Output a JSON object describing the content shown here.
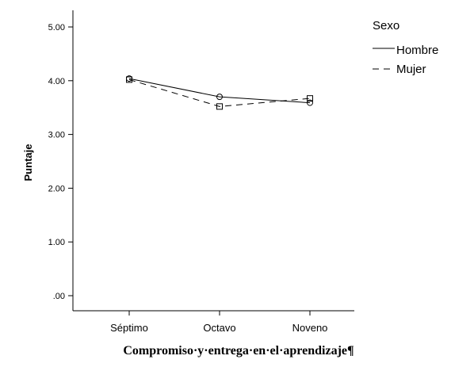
{
  "chart_data": {
    "type": "line",
    "categories": [
      "Séptimo",
      "Octavo",
      "Noveno"
    ],
    "series": [
      {
        "name": "Hombre",
        "values": [
          4.04,
          3.7,
          3.59
        ],
        "line_style": "solid",
        "marker": "circle"
      },
      {
        "name": "Mujer",
        "values": [
          4.02,
          3.52,
          3.67
        ],
        "line_style": "dashed",
        "marker": "square"
      }
    ],
    "ylabel": "Puntaje",
    "ylim": [
      0,
      5.2
    ],
    "yticks": [
      ".00",
      "1.00",
      "2.00",
      "3.00",
      "4.00",
      "5.00"
    ],
    "grid": false,
    "legend_title": "Sexo",
    "legend_position": "top-right outside plot",
    "caption": "Compromiso·y·entrega·en·el·aprendizaje¶",
    "colors": {
      "line": "#000000",
      "background": "#ffffff"
    }
  }
}
